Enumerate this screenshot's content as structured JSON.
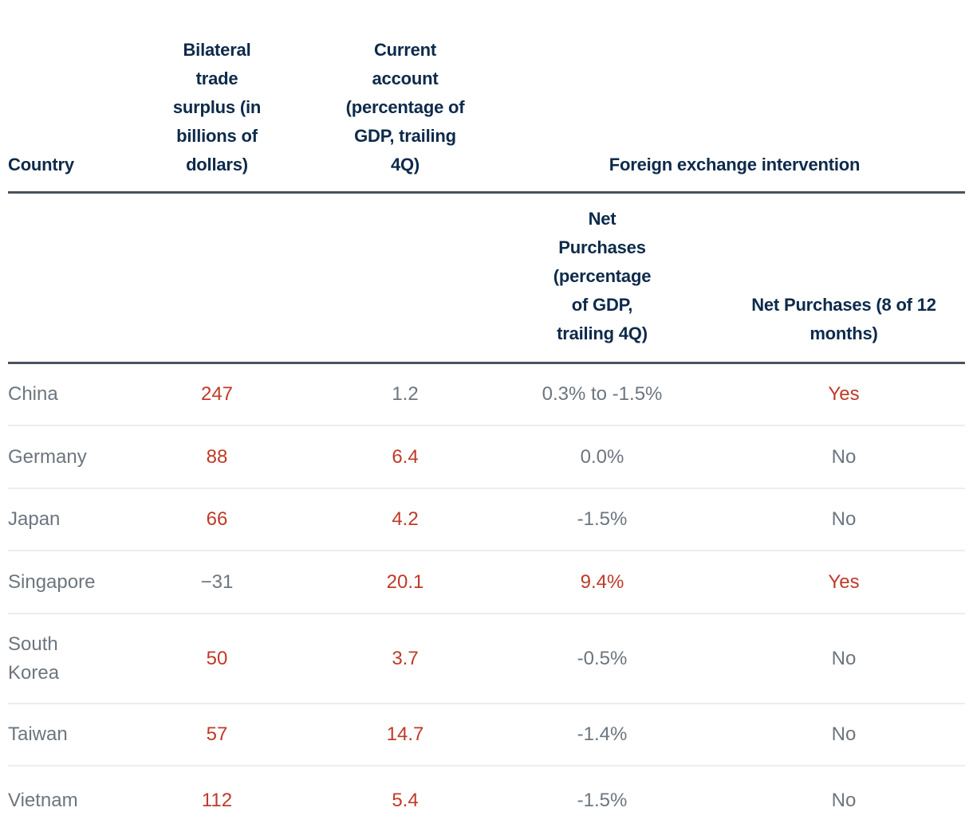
{
  "colors": {
    "header_navy": "#0d2a4b",
    "accent_red": "#bf3a27",
    "text_gray": "#6d757e",
    "rule_dark": "#4a525e",
    "rule_light": "#ededed",
    "background": "#ffffff"
  },
  "table": {
    "header": {
      "country": "Country",
      "bilateral": "Bilateral\ntrade\nsurplus (in\nbillions of\ndollars)",
      "current_account": "Current\naccount\n(percentage of\nGDP, trailing\n4Q)",
      "fx_group": "Foreign exchange intervention",
      "net_purchases_pct": "Net\nPurchases\n(percentage\nof GDP,\ntrailing 4Q)",
      "net_purchases_months": "Net Purchases (8 of 12\nmonths)"
    },
    "rows": [
      {
        "country": "China",
        "cells": [
          {
            "text": "247",
            "red": true
          },
          {
            "text": "1.2",
            "red": false
          },
          {
            "text": "0.3% to -1.5%",
            "red": false
          },
          {
            "text": "Yes",
            "red": true
          }
        ]
      },
      {
        "country": "Germany",
        "cells": [
          {
            "text": "88",
            "red": true
          },
          {
            "text": "6.4",
            "red": true
          },
          {
            "text": "0.0%",
            "red": false
          },
          {
            "text": "No",
            "red": false
          }
        ]
      },
      {
        "country": "Japan",
        "cells": [
          {
            "text": "66",
            "red": true
          },
          {
            "text": "4.2",
            "red": true
          },
          {
            "text": "-1.5%",
            "red": false
          },
          {
            "text": "No",
            "red": false
          }
        ]
      },
      {
        "country": "Singapore",
        "cells": [
          {
            "text": "−31",
            "red": false
          },
          {
            "text": "20.1",
            "red": true
          },
          {
            "text": "9.4%",
            "red": true
          },
          {
            "text": "Yes",
            "red": true
          }
        ]
      },
      {
        "country": "South Korea",
        "cells": [
          {
            "text": "50",
            "red": true
          },
          {
            "text": "3.7",
            "red": true
          },
          {
            "text": "-0.5%",
            "red": false
          },
          {
            "text": "No",
            "red": false
          }
        ]
      },
      {
        "country": "Taiwan",
        "cells": [
          {
            "text": "57",
            "red": true
          },
          {
            "text": "14.7",
            "red": true
          },
          {
            "text": "-1.4%",
            "red": false
          },
          {
            "text": "No",
            "red": false
          }
        ]
      },
      {
        "country": "Vietnam",
        "cells": [
          {
            "text": "112",
            "red": true
          },
          {
            "text": "5.4",
            "red": true
          },
          {
            "text": "-1.5%",
            "red": false
          },
          {
            "text": "No",
            "red": false
          }
        ]
      }
    ]
  },
  "chart_data": {
    "type": "table",
    "title": "",
    "columns": [
      "Country",
      "Bilateral trade surplus (in billions of dollars)",
      "Current account (percentage of GDP, trailing 4Q)",
      "Foreign exchange intervention — Net Purchases (percentage of GDP, trailing 4Q)",
      "Foreign exchange intervention — Net Purchases (8 of 12 months)"
    ],
    "rows": [
      [
        "China",
        247,
        1.2,
        "0.3% to -1.5%",
        "Yes"
      ],
      [
        "Germany",
        88,
        6.4,
        "0.0%",
        "No"
      ],
      [
        "Japan",
        66,
        4.2,
        "-1.5%",
        "No"
      ],
      [
        "Singapore",
        -31,
        20.1,
        "9.4%",
        "Yes"
      ],
      [
        "South Korea",
        50,
        3.7,
        "-0.5%",
        "No"
      ],
      [
        "Taiwan",
        57,
        14.7,
        "-1.4%",
        "No"
      ],
      [
        "Vietnam",
        112,
        5.4,
        "-1.5%",
        "No"
      ]
    ],
    "legend_position": "none",
    "grid": "horizontal-rules-only",
    "red_highlight_meaning": "values flagged in red in source graphic"
  }
}
